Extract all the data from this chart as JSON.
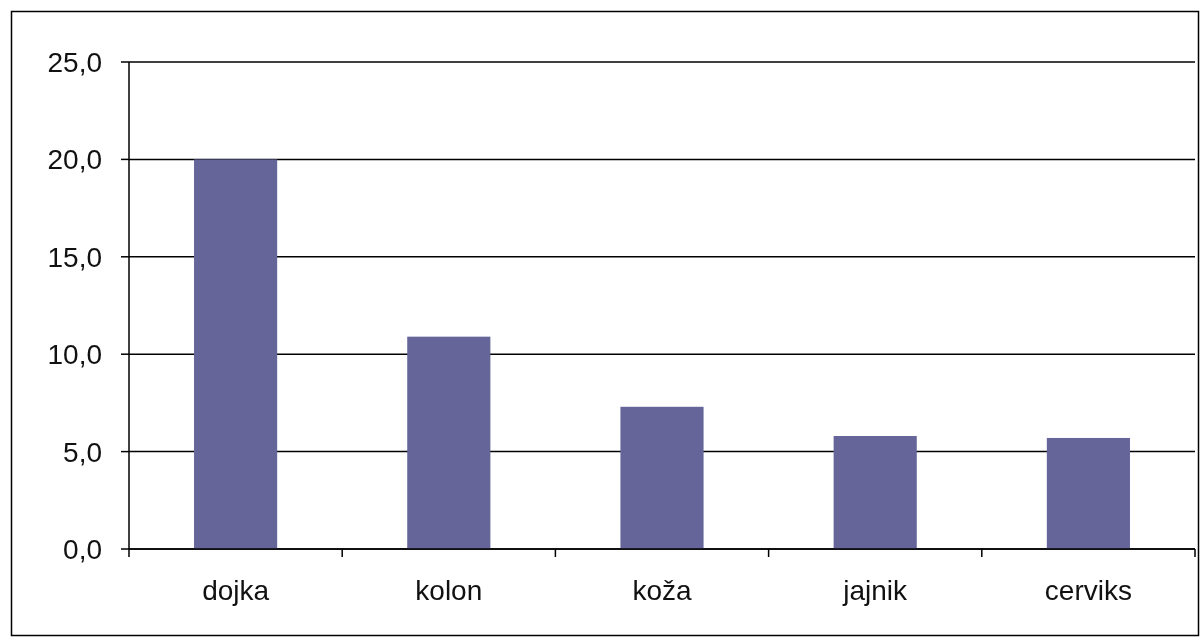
{
  "chart_data": {
    "type": "bar",
    "categories": [
      "dojka",
      "kolon",
      "koža",
      "jajnik",
      "cerviks"
    ],
    "values": [
      20.0,
      10.9,
      7.3,
      5.8,
      5.7
    ],
    "color": "#65659a",
    "ylim": [
      0,
      25
    ],
    "yticks": [
      {
        "value": 0,
        "label": "0,0"
      },
      {
        "value": 5,
        "label": "5,0"
      },
      {
        "value": 10,
        "label": "10,0"
      },
      {
        "value": 15,
        "label": "15,0"
      },
      {
        "value": 20,
        "label": "20,0"
      },
      {
        "value": 25,
        "label": "25,0"
      }
    ],
    "grid": "y"
  }
}
